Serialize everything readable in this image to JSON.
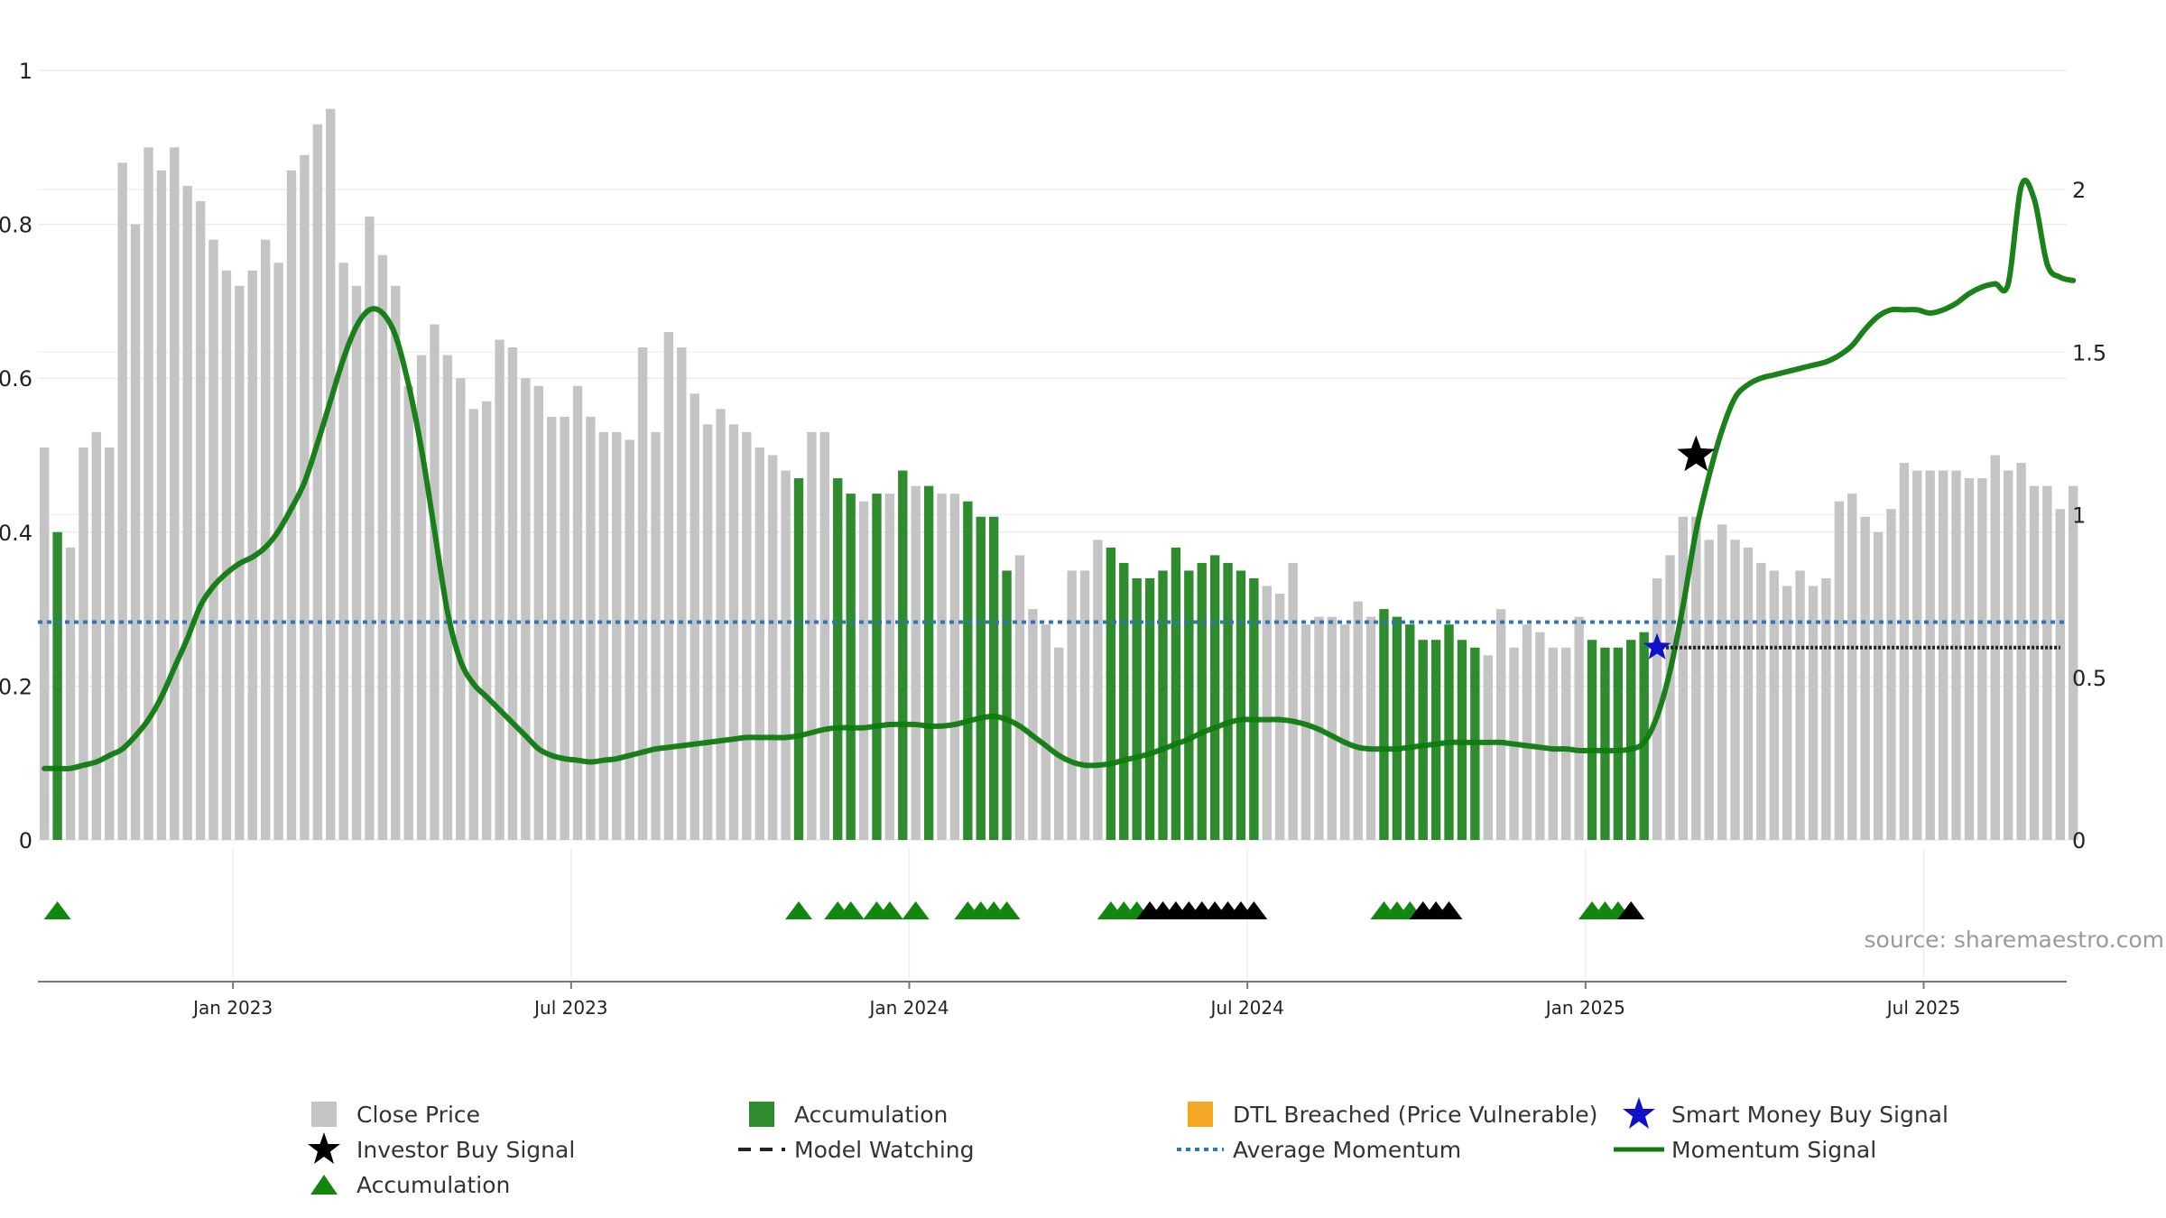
{
  "colors": {
    "close_price": "#c4c4c4",
    "accumulation_bar": "#2e8b2e",
    "accumulation_triangle": "#12870f",
    "watch_triangle": "#000000",
    "momentum": "#0f7b0f",
    "average_momentum": "#2f76b8",
    "dtl_breached": "#f5a623",
    "smart_money": "#1010c8",
    "investor_buy": "#000000",
    "model_watching": "#222222"
  },
  "chart_data": {
    "type": "bar",
    "grid": true,
    "legend_position": "bottom",
    "y_left": {
      "range": [
        0,
        1
      ],
      "ticks": [
        "0",
        "0.2",
        "0.4",
        "0.6",
        "0.8",
        "1"
      ],
      "tick_values": [
        0,
        0.2,
        0.4,
        0.6,
        0.8,
        1
      ]
    },
    "y_right": {
      "range": [
        0,
        2.0
      ],
      "ticks": [
        "0",
        "0.5",
        "1",
        "1.5",
        "2"
      ],
      "tick_values": [
        0,
        0.5,
        1,
        1.5,
        2
      ]
    },
    "x_axis": {
      "ticks": [
        "Jan 2023",
        "Jul 2023",
        "Jan 2024",
        "Jul 2024",
        "Jan 2025",
        "Jul 2025"
      ],
      "tick_week_index": [
        15,
        41,
        67,
        93,
        119,
        145
      ]
    },
    "x_range_weeks": [
      0,
      156
    ],
    "source_note": "source: sharemaestro.com",
    "close_price_weekly": [
      0.51,
      0.4,
      0.38,
      0.51,
      0.53,
      0.51,
      0.88,
      0.8,
      0.9,
      0.87,
      0.9,
      0.85,
      0.83,
      0.78,
      0.74,
      0.72,
      0.74,
      0.78,
      0.75,
      0.87,
      0.89,
      0.93,
      0.95,
      0.75,
      0.72,
      0.81,
      0.76,
      0.72,
      0.59,
      0.63,
      0.67,
      0.63,
      0.6,
      0.56,
      0.57,
      0.65,
      0.64,
      0.6,
      0.59,
      0.55,
      0.55,
      0.59,
      0.55,
      0.53,
      0.53,
      0.52,
      0.64,
      0.53,
      0.66,
      0.64,
      0.58,
      0.54,
      0.56,
      0.54,
      0.53,
      0.51,
      0.5,
      0.48,
      0.47,
      0.53,
      0.53,
      0.47,
      0.45,
      0.44,
      0.45,
      0.45,
      0.48,
      0.46,
      0.46,
      0.45,
      0.45,
      0.44,
      0.42,
      0.42,
      0.35,
      0.37,
      0.3,
      0.28,
      0.25,
      0.35,
      0.35,
      0.39,
      0.38,
      0.36,
      0.34,
      0.34,
      0.35,
      0.38,
      0.35,
      0.36,
      0.37,
      0.36,
      0.35,
      0.34,
      0.33,
      0.32,
      0.36,
      0.28,
      0.29,
      0.29,
      0.28,
      0.31,
      0.29,
      0.3,
      0.29,
      0.28,
      0.26,
      0.26,
      0.28,
      0.26,
      0.25,
      0.24,
      0.3,
      0.25,
      0.28,
      0.27,
      0.25,
      0.25,
      0.29,
      0.26,
      0.25,
      0.25,
      0.26,
      0.27,
      0.34,
      0.37,
      0.42,
      0.42,
      0.39,
      0.41,
      0.39,
      0.38,
      0.36,
      0.35,
      0.33,
      0.35,
      0.33,
      0.34,
      0.44,
      0.45,
      0.42,
      0.4,
      0.43,
      0.49,
      0.48,
      0.48,
      0.48,
      0.48,
      0.47,
      0.47,
      0.5,
      0.48,
      0.49,
      0.46,
      0.46,
      0.43,
      0.46
    ],
    "accumulation_bar_weeks": [
      1,
      58,
      61,
      62,
      64,
      66,
      68,
      71,
      72,
      73,
      74,
      82,
      83,
      84,
      85,
      86,
      87,
      88,
      89,
      90,
      91,
      92,
      93,
      103,
      104,
      105,
      106,
      107,
      108,
      109,
      110,
      119,
      120,
      121,
      122,
      123
    ],
    "accumulation_triangle_weeks": [
      1,
      58,
      61,
      62,
      64,
      65,
      67,
      71,
      72,
      73,
      74,
      82,
      83,
      84,
      103,
      104,
      105,
      119,
      120,
      121
    ],
    "watch_triangle_weeks": [
      85,
      86,
      87,
      88,
      89,
      90,
      91,
      92,
      93,
      106,
      107,
      108,
      122
    ],
    "momentum_weekly": [
      0.22,
      0.22,
      0.22,
      0.23,
      0.24,
      0.26,
      0.28,
      0.32,
      0.37,
      0.44,
      0.53,
      0.62,
      0.72,
      0.78,
      0.82,
      0.85,
      0.87,
      0.9,
      0.95,
      1.02,
      1.1,
      1.22,
      1.35,
      1.48,
      1.58,
      1.63,
      1.62,
      1.55,
      1.4,
      1.2,
      0.95,
      0.7,
      0.55,
      0.48,
      0.44,
      0.4,
      0.36,
      0.32,
      0.28,
      0.26,
      0.25,
      0.245,
      0.24,
      0.245,
      0.25,
      0.26,
      0.27,
      0.28,
      0.285,
      0.29,
      0.295,
      0.3,
      0.305,
      0.31,
      0.315,
      0.315,
      0.315,
      0.315,
      0.32,
      0.33,
      0.34,
      0.345,
      0.345,
      0.345,
      0.35,
      0.355,
      0.355,
      0.355,
      0.35,
      0.35,
      0.355,
      0.365,
      0.375,
      0.38,
      0.37,
      0.35,
      0.32,
      0.29,
      0.26,
      0.24,
      0.23,
      0.23,
      0.235,
      0.245,
      0.255,
      0.265,
      0.28,
      0.295,
      0.31,
      0.33,
      0.345,
      0.36,
      0.37,
      0.37,
      0.37,
      0.37,
      0.365,
      0.355,
      0.34,
      0.32,
      0.3,
      0.285,
      0.28,
      0.28,
      0.28,
      0.285,
      0.29,
      0.295,
      0.3,
      0.3,
      0.3,
      0.3,
      0.3,
      0.295,
      0.29,
      0.285,
      0.28,
      0.28,
      0.275,
      0.275,
      0.275,
      0.275,
      0.28,
      0.3,
      0.38,
      0.52,
      0.72,
      0.95,
      1.12,
      1.26,
      1.36,
      1.4,
      1.42,
      1.43,
      1.44,
      1.45,
      1.46,
      1.47,
      1.49,
      1.52,
      1.57,
      1.61,
      1.63,
      1.63,
      1.63,
      1.62,
      1.63,
      1.65,
      1.68,
      1.7,
      1.71,
      1.71,
      2.01,
      1.97,
      1.77,
      1.73,
      1.72
    ],
    "average_momentum_value": 0.67,
    "investor_buy_signal": {
      "week": 127,
      "value": 0.5
    },
    "smart_money_buy_signal": {
      "week": 124,
      "value": 0.25
    },
    "model_watching": {
      "from_week": 124,
      "to_week": 155,
      "value": 0.25
    },
    "legend": {
      "close_price": "Close Price",
      "accumulation_bar": "Accumulation",
      "dtl_breached": "DTL Breached (Price Vulnerable)",
      "smart_money_buy": "Smart Money Buy Signal",
      "investor_buy": "Investor Buy Signal",
      "model_watching": "Model Watching",
      "average_momentum": "Average Momentum",
      "momentum_signal": "Momentum Signal",
      "accumulation_triangle": "Accumulation"
    }
  }
}
